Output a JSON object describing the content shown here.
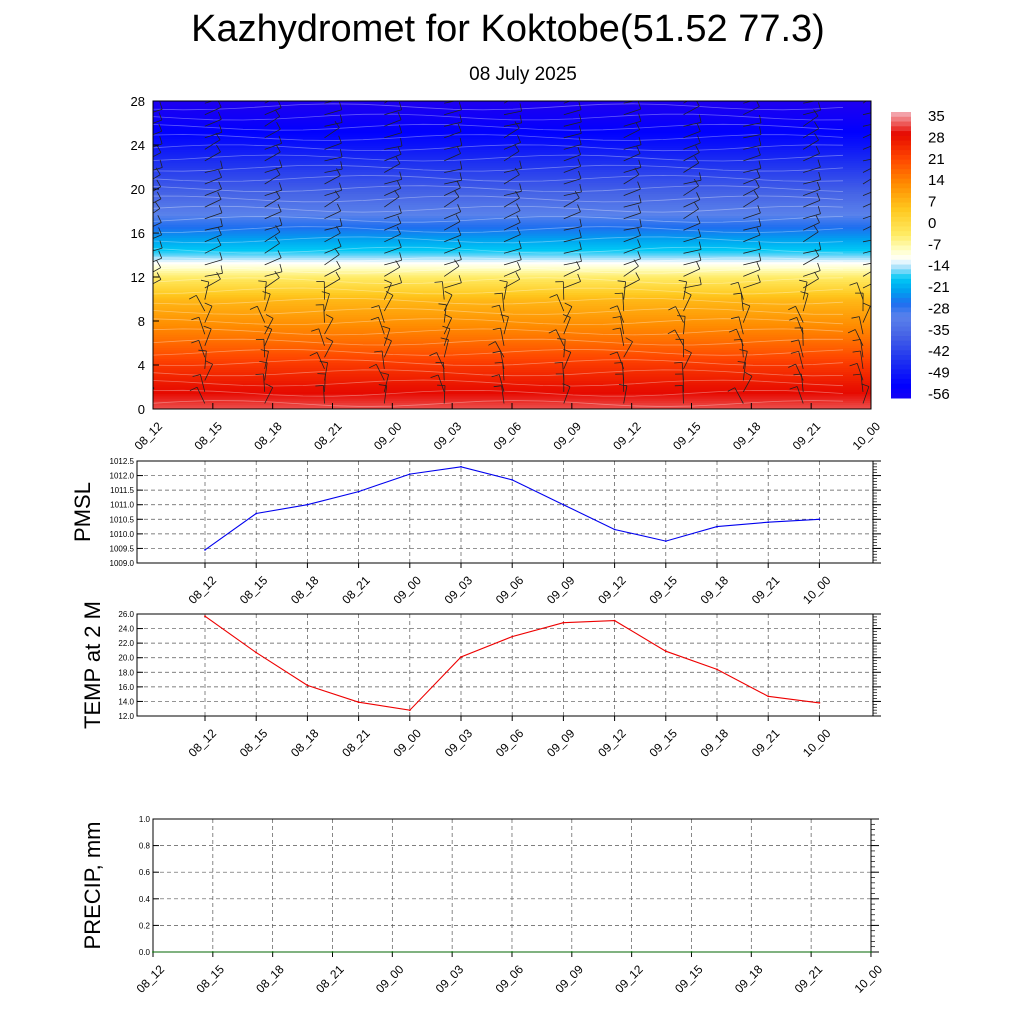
{
  "title": "Kazhydromet for Koktobe(51.52 77.3)",
  "subtitle": "08 July 2025",
  "colorbar": {
    "labels": [
      "35",
      "28",
      "21",
      "14",
      "7",
      "0",
      "-7",
      "-14",
      "-21",
      "-28",
      "-35",
      "-42",
      "-49",
      "-56"
    ]
  },
  "chart_data": [
    {
      "type": "heatmap",
      "name": "vertical-profile",
      "x_ticks": [
        "08_12",
        "08_15",
        "08_18",
        "08_21",
        "09_00",
        "09_03",
        "09_06",
        "09_09",
        "09_12",
        "09_15",
        "09_18",
        "09_21",
        "10_00"
      ],
      "y_ticks": [
        "0",
        "4",
        "8",
        "12",
        "16",
        "20",
        "24",
        "28"
      ],
      "ylim": [
        0,
        28
      ],
      "color_range": [
        -56,
        35
      ],
      "profile_levels": [
        0,
        2,
        4,
        6,
        8,
        10,
        12,
        14,
        16,
        18,
        20,
        22,
        24,
        26,
        28
      ],
      "profile_values": [
        31,
        27,
        22,
        16,
        11,
        6,
        -4,
        -16,
        -24,
        -31,
        -37,
        -43,
        -49,
        -54,
        -58
      ],
      "wind_barbs": true
    },
    {
      "type": "line",
      "name": "pmsl",
      "ylabel": "PMSL",
      "x": [
        "08_12",
        "08_15",
        "08_18",
        "08_21",
        "09_00",
        "09_03",
        "09_06",
        "09_09",
        "09_12",
        "09_15",
        "09_18",
        "09_21",
        "10_00"
      ],
      "values": [
        1009.45,
        1010.7,
        1011.0,
        1011.45,
        1012.05,
        1012.3,
        1011.85,
        1011.0,
        1010.15,
        1009.75,
        1010.25,
        1010.4,
        1010.5
      ],
      "y_ticks": [
        "1009.0",
        "1009.5",
        "1010.0",
        "1010.5",
        "1011.0",
        "1011.5",
        "1012.0",
        "1012.5"
      ],
      "ylim": [
        1009.0,
        1012.5
      ],
      "color": "#0000ee",
      "grid": true
    },
    {
      "type": "line",
      "name": "temp2m",
      "ylabel": "TEMP at 2 M",
      "x": [
        "08_12",
        "08_15",
        "08_18",
        "08_21",
        "09_00",
        "09_03",
        "09_06",
        "09_09",
        "09_12",
        "09_15",
        "09_18",
        "09_21",
        "10_00"
      ],
      "values": [
        25.7,
        20.7,
        16.2,
        13.9,
        12.8,
        20.1,
        22.9,
        24.8,
        25.1,
        20.9,
        18.4,
        14.7,
        13.8
      ],
      "y_ticks": [
        "12.0",
        "14.0",
        "16.0",
        "18.0",
        "20.0",
        "22.0",
        "24.0",
        "26.0"
      ],
      "ylim": [
        12.0,
        26.0
      ],
      "color": "#ee0000",
      "grid": true
    },
    {
      "type": "line",
      "name": "precip",
      "ylabel": "PRECIP, mm",
      "x": [
        "08_12",
        "08_15",
        "08_18",
        "08_21",
        "09_00",
        "09_03",
        "09_06",
        "09_09",
        "09_12",
        "09_15",
        "09_18",
        "09_21",
        "10_00"
      ],
      "values": [
        0,
        0,
        0,
        0,
        0,
        0,
        0,
        0,
        0,
        0,
        0,
        0,
        0
      ],
      "y_ticks": [
        "0.0",
        "0.2",
        "0.4",
        "0.6",
        "0.8",
        "1.0"
      ],
      "ylim": [
        0.0,
        1.0
      ],
      "color": "#006400",
      "grid": true
    }
  ]
}
